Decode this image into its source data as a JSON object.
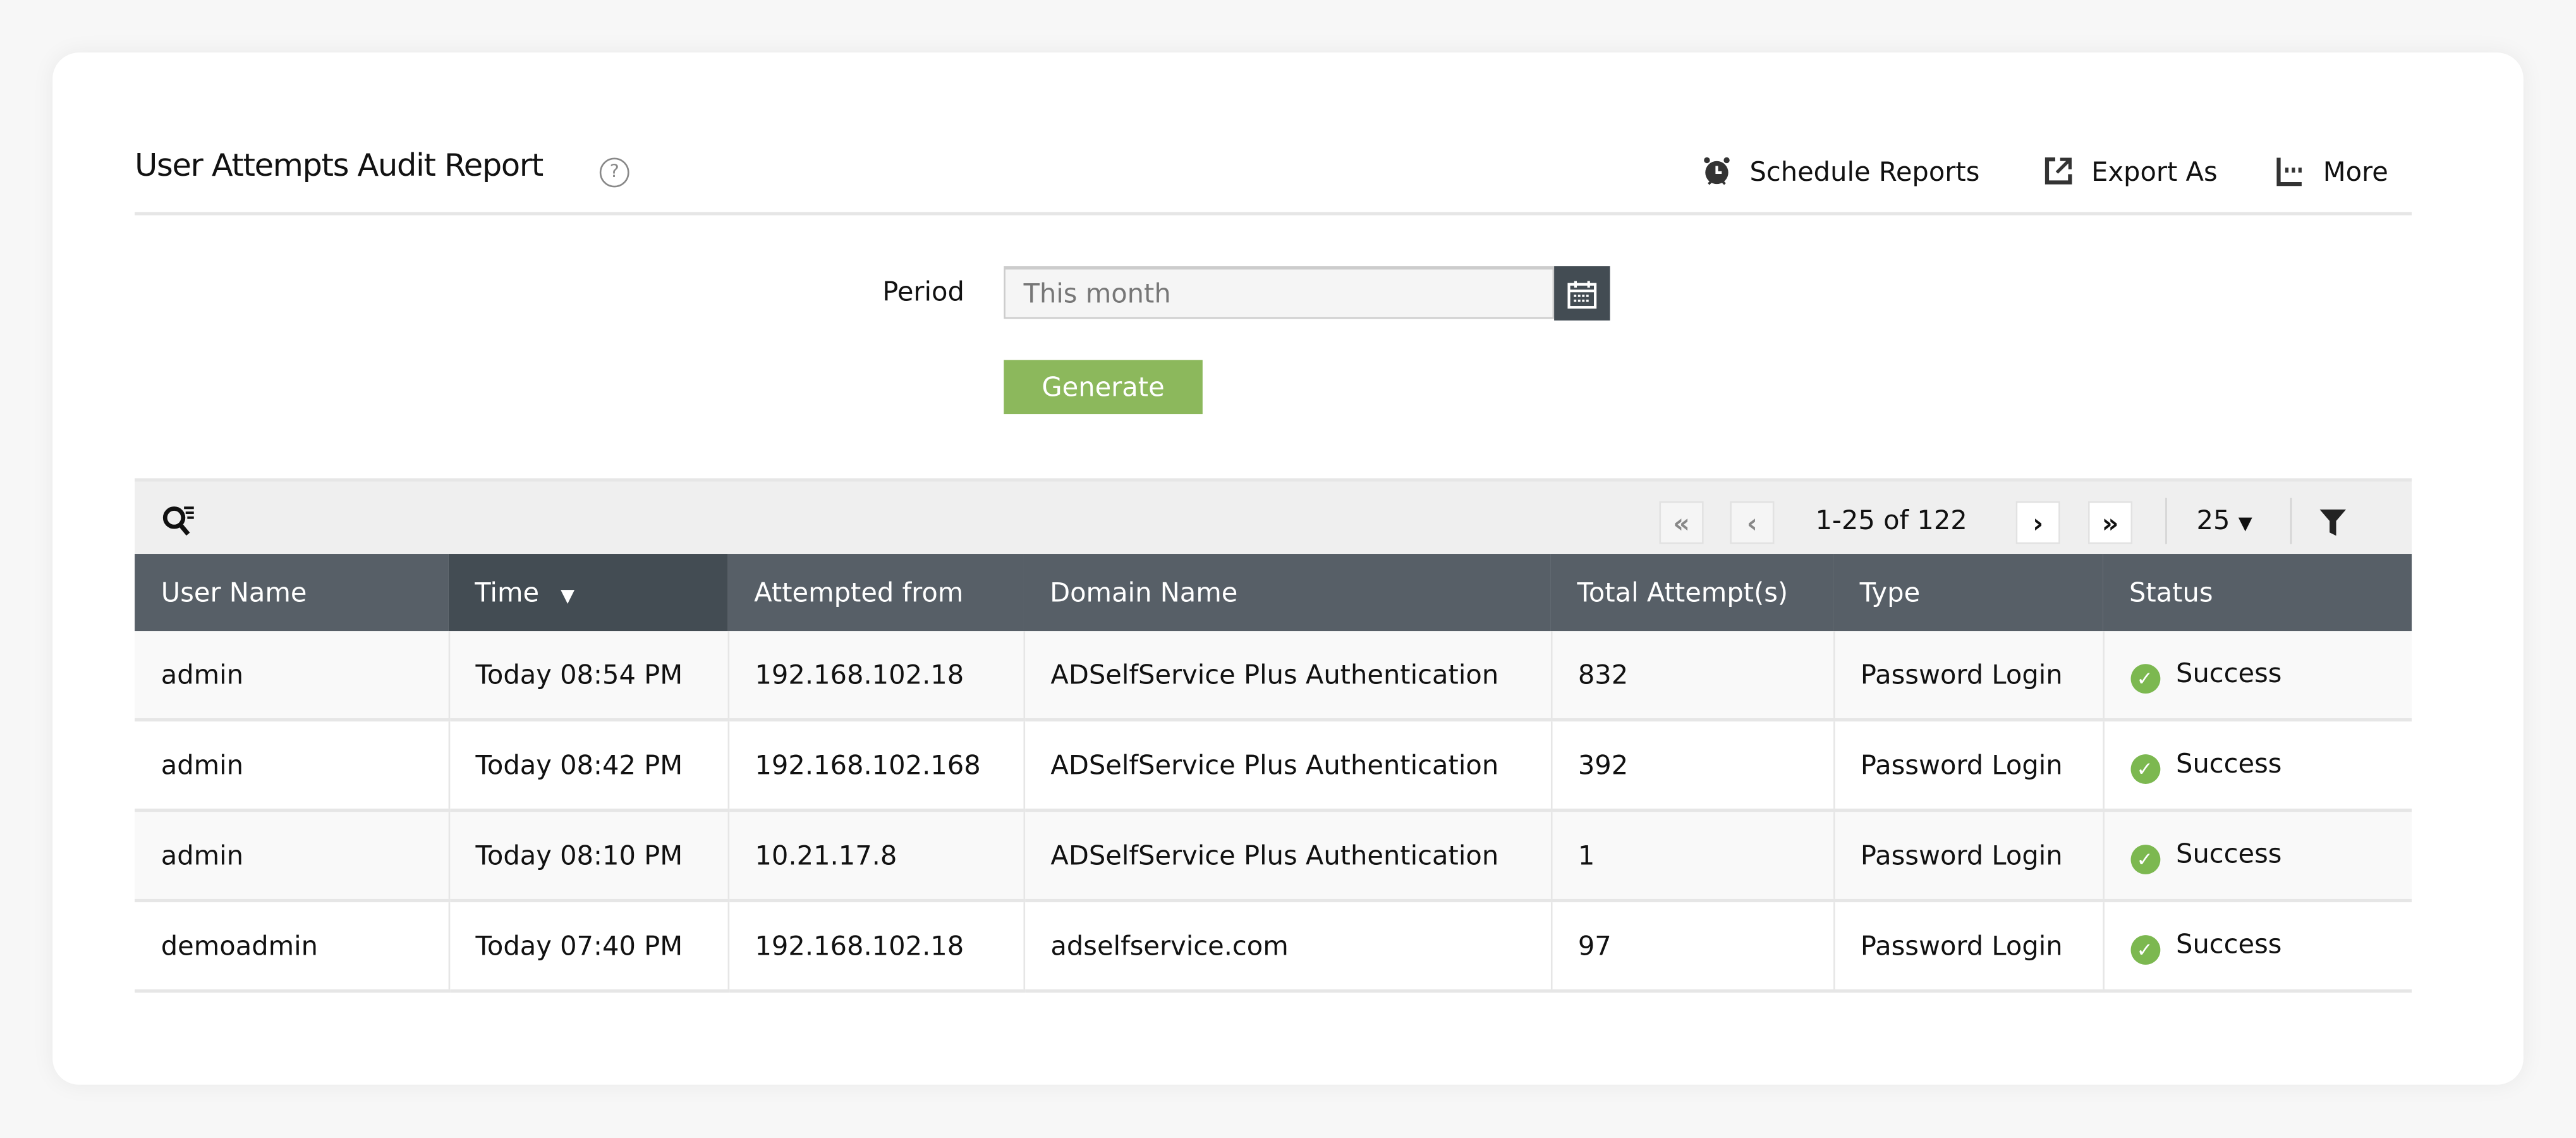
{
  "header": {
    "title": "User Attempts Audit Report",
    "help_icon": "question-circle-icon",
    "actions": [
      {
        "label": "Schedule Reports",
        "icon": "alarm-clock-icon"
      },
      {
        "label": "Export As",
        "icon": "export-icon"
      },
      {
        "label": "More",
        "icon": "more-icon"
      }
    ]
  },
  "form": {
    "period_label": "Period",
    "period_value": "This month",
    "generate_label": "Generate"
  },
  "toolbar": {
    "range_text": "1-25 of 122",
    "page_size": "25",
    "first": "«",
    "prev": "‹",
    "next": "›",
    "last": "»"
  },
  "table": {
    "columns": [
      "User Name",
      "Time",
      "Attempted from",
      "Domain Name",
      "Total Attempt(s)",
      "Type",
      "Status"
    ],
    "sorted_column": "Time",
    "rows": [
      [
        "admin",
        "Today 08:54 PM",
        "192.168.102.18",
        "ADSelfService Plus Authentication",
        "832",
        "Password Login",
        "Success"
      ],
      [
        "admin",
        "Today 08:42 PM",
        "192.168.102.168",
        "ADSelfService Plus Authentication",
        "392",
        "Password Login",
        "Success"
      ],
      [
        "admin",
        "Today 08:10 PM",
        "10.21.17.8",
        "ADSelfService Plus Authentication",
        "1",
        "Password Login",
        "Success"
      ],
      [
        "demoadmin",
        "Today 07:40 PM",
        "192.168.102.18",
        "adselfservice.com",
        "97",
        "Password Login",
        "Success"
      ]
    ]
  },
  "colors": {
    "accent_green": "#8cb85c",
    "header_bg": "#575f67",
    "header_sorted_bg": "#434c53",
    "success": "#7cb850"
  }
}
